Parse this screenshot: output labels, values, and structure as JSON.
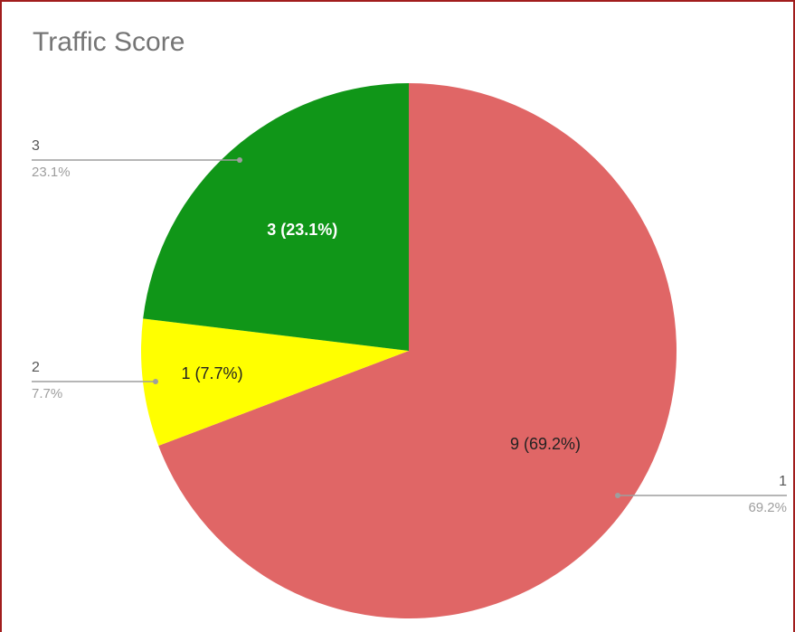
{
  "chart_data": {
    "type": "pie",
    "title": "Traffic Score",
    "categories": [
      "1",
      "2",
      "3"
    ],
    "values": [
      9,
      1,
      3
    ],
    "value_labels": [
      "9 (69.2%)",
      "1 (7.7%)",
      "3 (23.1%)"
    ],
    "percent_labels": [
      "69.2%",
      "7.7%",
      "23.1%"
    ],
    "colors": [
      "#e06666",
      "#ffff00",
      "#109618"
    ]
  }
}
